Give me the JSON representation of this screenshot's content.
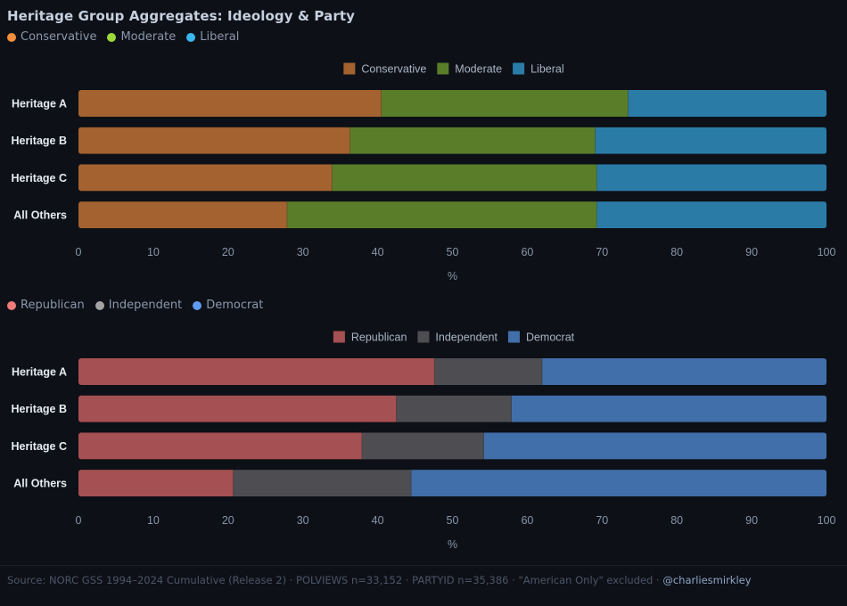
{
  "header": {
    "title": "Heritage Group Aggregates: Ideology & Party"
  },
  "footer": {
    "source": "Source: NORC GSS 1994–2024 Cumulative (Release 2) · POLVIEWS n=33,152 · PARTYID n=35,386 · \"American Only\" excluded · ",
    "handle": "@charliesmirkley"
  },
  "chart_data": [
    {
      "type": "bar",
      "orientation": "horizontal",
      "stacked": true,
      "categories": [
        "Heritage A",
        "Heritage B",
        "Heritage C",
        "All Others"
      ],
      "series": [
        {
          "name": "Conservative",
          "values": [
            40.5,
            36.3,
            33.9,
            27.9
          ]
        },
        {
          "name": "Moderate",
          "values": [
            33.0,
            32.8,
            35.4,
            41.4
          ]
        },
        {
          "name": "Liberal",
          "values": [
            26.5,
            30.9,
            30.7,
            30.7
          ]
        }
      ],
      "colors": [
        "#a3622f",
        "#5a7d2a",
        "#2a7ca7"
      ],
      "top_legend": [
        {
          "label": "Conservative",
          "color": "#f28e3c"
        },
        {
          "label": "Moderate",
          "color": "#9bd93b"
        },
        {
          "label": "Liberal",
          "color": "#3ab7ef"
        }
      ],
      "xlabel": "%",
      "xlim": [
        0,
        100
      ],
      "xticks": [
        0,
        10,
        20,
        30,
        40,
        50,
        60,
        70,
        80,
        90,
        100
      ],
      "legend_position": "top-center",
      "grid": false
    },
    {
      "type": "bar",
      "orientation": "horizontal",
      "stacked": true,
      "categories": [
        "Heritage A",
        "Heritage B",
        "Heritage C",
        "All Others"
      ],
      "series": [
        {
          "name": "Republican",
          "values": [
            47.6,
            42.5,
            37.9,
            20.7
          ]
        },
        {
          "name": "Independent",
          "values": [
            14.4,
            15.4,
            16.3,
            23.8
          ]
        },
        {
          "name": "Democrat",
          "values": [
            38.0,
            42.1,
            45.8,
            55.5
          ]
        }
      ],
      "colors": [
        "#a55052",
        "#4d4d52",
        "#416faa"
      ],
      "top_legend": [
        {
          "label": "Republican",
          "color": "#f07a7a"
        },
        {
          "label": "Independent",
          "color": "#a3a3a3"
        },
        {
          "label": "Democrat",
          "color": "#5f9bf0"
        }
      ],
      "xlabel": "%",
      "xlim": [
        0,
        100
      ],
      "xticks": [
        0,
        10,
        20,
        30,
        40,
        50,
        60,
        70,
        80,
        90,
        100
      ],
      "legend_position": "top-center",
      "grid": false
    }
  ]
}
